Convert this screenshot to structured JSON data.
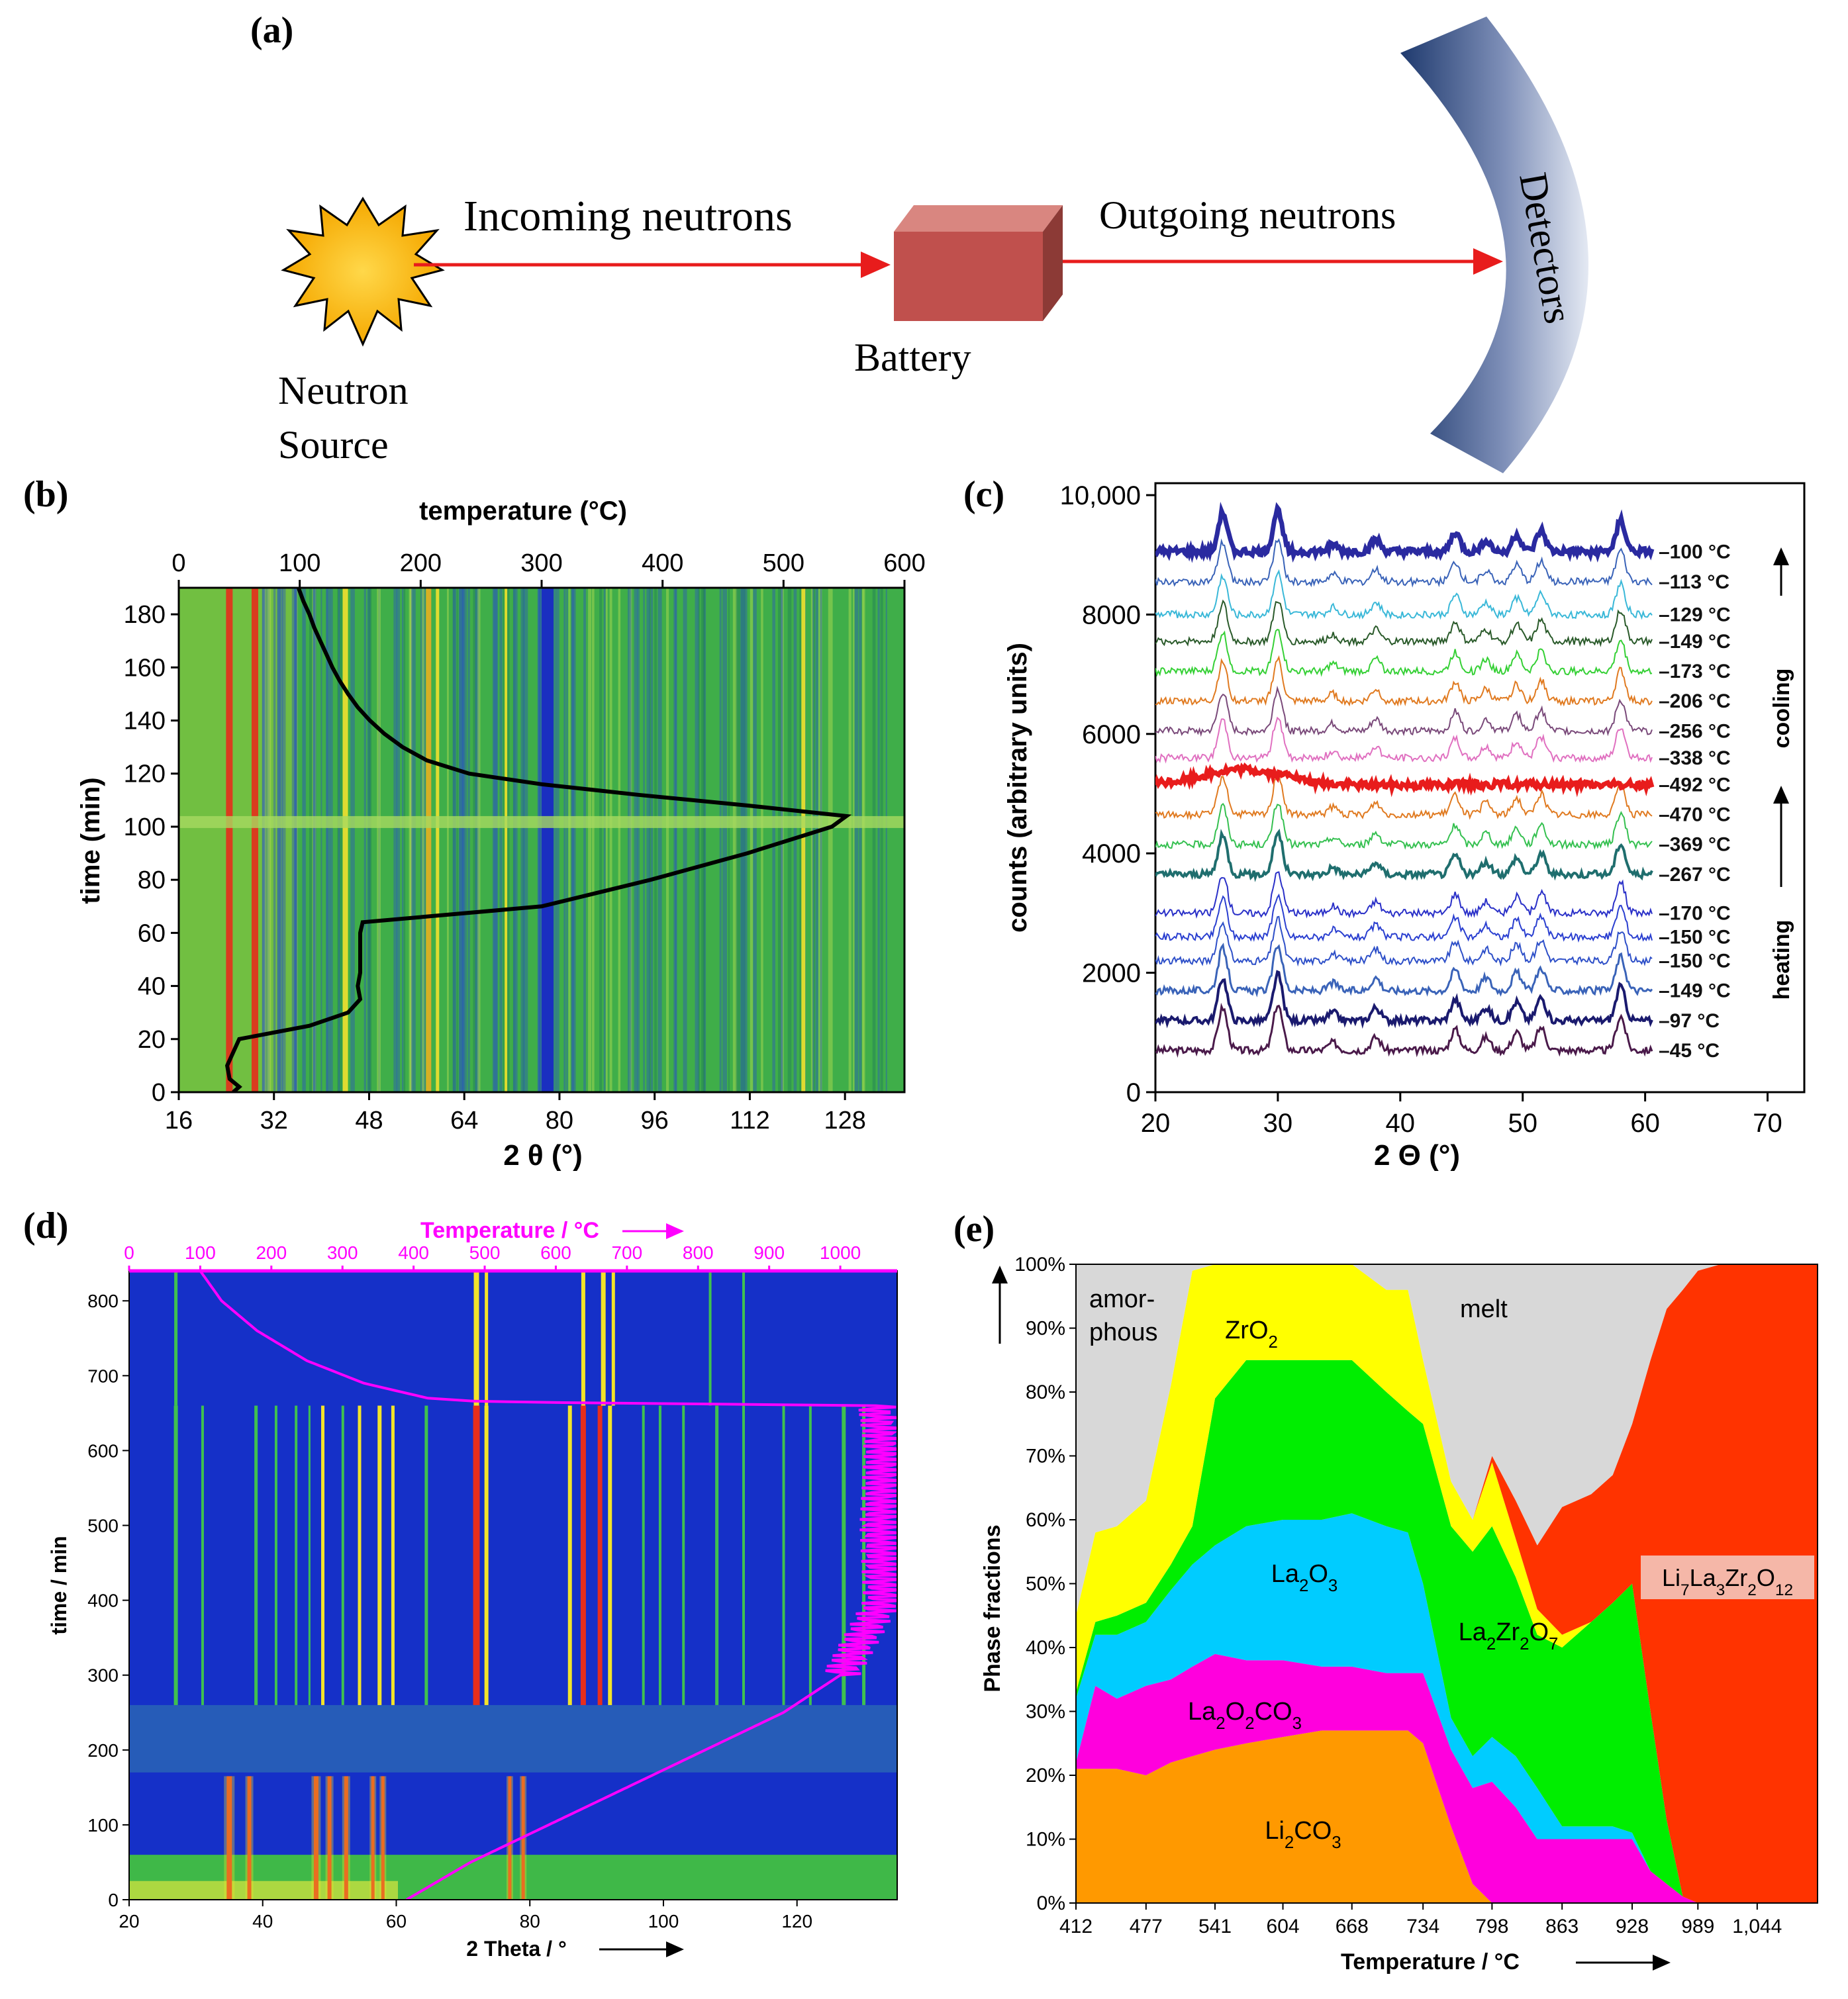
{
  "figure": {
    "panel_labels": {
      "a": "(a)",
      "b": "(b)",
      "c": "(c)",
      "d": "(d)",
      "e": "(e)"
    }
  },
  "panel_a": {
    "source_label_line1": "Neutron",
    "source_label_line2": "Source",
    "incoming_label": "Incoming neutrons",
    "battery_label": "Battery",
    "outgoing_label": "Outgoing neutrons",
    "detectors_label": "Detectors",
    "colors": {
      "star": "#FFC000",
      "arrow": "#E81C1C",
      "battery": "#C0504D",
      "detector_dark": "#1F3A6E",
      "detector_light": "#DCE3F0"
    }
  },
  "chart_data": [
    {
      "id": "b",
      "type": "heatmap",
      "title": "",
      "top_axis_label": "temperature (°C)",
      "top_ticks": [
        "0",
        "100",
        "200",
        "300",
        "400",
        "500",
        "600"
      ],
      "top_range": [
        0,
        600
      ],
      "xlabel": "2 θ (°)",
      "x_ticks": [
        "16",
        "32",
        "48",
        "64",
        "80",
        "96",
        "112",
        "128"
      ],
      "x_range": [
        16,
        138
      ],
      "ylabel": "time (min)",
      "y_ticks": [
        "0",
        "20",
        "40",
        "60",
        "80",
        "100",
        "120",
        "140",
        "160",
        "180"
      ],
      "y_range": [
        0,
        190
      ],
      "temperature_profile": {
        "time": [
          0,
          2,
          5,
          10,
          15,
          20,
          25,
          30,
          35,
          40,
          45,
          50,
          55,
          60,
          64,
          70,
          80,
          90,
          100,
          104,
          108,
          112,
          116,
          120,
          125,
          130,
          135,
          140,
          145,
          150,
          155,
          160,
          165,
          170,
          175,
          180,
          185,
          190
        ],
        "temperature": [
          45,
          50,
          42,
          40,
          45,
          50,
          108,
          140,
          150,
          148,
          150,
          150,
          150,
          150,
          152,
          300,
          390,
          470,
          540,
          552,
          470,
          380,
          300,
          240,
          205,
          185,
          170,
          158,
          148,
          140,
          133,
          127,
          122,
          117,
          112,
          108,
          103,
          99
        ]
      }
    },
    {
      "id": "c",
      "type": "line",
      "xlabel": "2 Θ (°)",
      "ylabel": "counts   (arbitrary units)",
      "x_ticks": [
        "20",
        "30",
        "40",
        "50",
        "60",
        "70"
      ],
      "x_range": [
        20,
        73
      ],
      "y_ticks": [
        "0",
        "2000",
        "4000",
        "6000",
        "8000",
        "10,000"
      ],
      "y_tick_values": [
        0,
        2000,
        4000,
        6000,
        8000,
        10000
      ],
      "y_range": [
        0,
        10200
      ],
      "cooling_label": "cooling",
      "heating_label": "heating",
      "series": [
        {
          "name": "45 °C",
          "offset": 700,
          "color": "#4A1A4A",
          "width": 3
        },
        {
          "name": "97 °C",
          "offset": 1200,
          "color": "#1A1A6E",
          "width": 4
        },
        {
          "name": "149 °C",
          "offset": 1700,
          "color": "#3A63B8",
          "width": 3
        },
        {
          "name": "150 °C",
          "offset": 2200,
          "color": "#2D4FC8",
          "width": 2
        },
        {
          "name": "150 °C",
          "offset": 2600,
          "color": "#2A3FD0",
          "width": 2
        },
        {
          "name": "170 °C",
          "offset": 3000,
          "color": "#2A30C8",
          "width": 2
        },
        {
          "name": "267 °C",
          "offset": 3650,
          "color": "#1F6E6E",
          "width": 4
        },
        {
          "name": "369 °C",
          "offset": 4150,
          "color": "#35C050",
          "width": 2
        },
        {
          "name": "470 °C",
          "offset": 4650,
          "color": "#E07A20",
          "width": 2
        },
        {
          "name": "492 °C",
          "offset": 5150,
          "color": "#E81C1C",
          "width": 7
        },
        {
          "name": "338 °C",
          "offset": 5600,
          "color": "#E070C0",
          "width": 2
        },
        {
          "name": "256 °C",
          "offset": 6050,
          "color": "#7A4A7A",
          "width": 2
        },
        {
          "name": "206 °C",
          "offset": 6550,
          "color": "#E07A20",
          "width": 2
        },
        {
          "name": "173 °C",
          "offset": 7050,
          "color": "#35D035",
          "width": 2
        },
        {
          "name": "149 °C",
          "offset": 7550,
          "color": "#2A5A2A",
          "width": 2
        },
        {
          "name": "129 °C",
          "offset": 8000,
          "color": "#3AB8D8",
          "width": 2
        },
        {
          "name": "113 °C",
          "offset": 8550,
          "color": "#3A63B8",
          "width": 2
        },
        {
          "name": "100 °C",
          "offset": 9050,
          "color": "#2A2AA0",
          "width": 7
        }
      ],
      "peak_positions": [
        25.5,
        30,
        34.5,
        38,
        44.5,
        47,
        49.5,
        51.5,
        58
      ]
    },
    {
      "id": "d",
      "type": "heatmap",
      "top_axis_label": "Temperature / °C",
      "top_ticks": [
        "0",
        "100",
        "200",
        "300",
        "400",
        "500",
        "600",
        "700",
        "800",
        "900",
        "1000"
      ],
      "top_range": [
        0,
        1080
      ],
      "xlabel": "2 Theta / °",
      "x_ticks": [
        "20",
        "40",
        "60",
        "80",
        "100",
        "120"
      ],
      "x_range": [
        20,
        135
      ],
      "ylabel": "time / min",
      "y_ticks": [
        "0",
        "100",
        "200",
        "300",
        "400",
        "500",
        "600",
        "700",
        "800"
      ],
      "y_range": [
        0,
        840
      ],
      "temperature_profile": {
        "time": [
          0,
          50,
          100,
          150,
          200,
          250,
          300,
          400,
          500,
          600,
          660,
          665,
          670,
          690,
          720,
          760,
          800,
          840
        ],
        "temperature": [
          390,
          480,
          590,
          700,
          810,
          920,
          1000,
          1060,
          1055,
          1060,
          1050,
          500,
          420,
          330,
          250,
          180,
          130,
          100
        ]
      }
    },
    {
      "id": "e",
      "type": "area",
      "stacked": true,
      "xlabel": "Temperature / °C",
      "ylabel": "Phase    fractions",
      "x_ticks": [
        "412",
        "477",
        "541",
        "604",
        "668",
        "734",
        "798",
        "863",
        "928",
        "989",
        "1,044"
      ],
      "x_tick_values": [
        412,
        477,
        541,
        604,
        668,
        734,
        798,
        863,
        928,
        989,
        1044
      ],
      "x_range": [
        412,
        1100
      ],
      "y_ticks": [
        "0%",
        "10%",
        "20%",
        "30%",
        "40%",
        "50%",
        "60%",
        "70%",
        "80%",
        "90%",
        "100%"
      ],
      "y_range": [
        0,
        100
      ],
      "x": [
        412,
        430,
        450,
        477,
        500,
        520,
        541,
        570,
        604,
        640,
        668,
        700,
        720,
        734,
        760,
        780,
        798,
        820,
        840,
        863,
        890,
        910,
        928,
        945,
        960,
        975,
        989,
        1010,
        1044,
        1100
      ],
      "series": [
        {
          "name": "Li2CO3",
          "color": "#FF9900",
          "values": [
            21,
            21,
            21,
            20,
            22,
            23,
            24,
            25,
            26,
            27,
            27,
            27,
            27,
            25,
            12,
            3,
            0,
            0,
            0,
            0,
            0,
            0,
            0,
            0,
            0,
            0,
            0,
            0,
            0,
            0
          ]
        },
        {
          "name": "La2O2CO3",
          "color": "#FF00DD",
          "values": [
            1,
            13,
            11,
            14,
            13,
            14,
            15,
            13,
            12,
            10,
            10,
            9,
            9,
            11,
            12,
            15,
            19,
            15,
            10,
            10,
            10,
            10,
            10,
            5,
            3,
            1,
            0,
            0,
            0,
            0
          ]
        },
        {
          "name": "La2O3",
          "color": "#00CCFF",
          "values": [
            10,
            8,
            10,
            10,
            14,
            16,
            17,
            21,
            22,
            23,
            24,
            23,
            22,
            14,
            5,
            5,
            7,
            8,
            8,
            2,
            2,
            2,
            1,
            0,
            0,
            0,
            0,
            0,
            0,
            0
          ]
        },
        {
          "name": "La2Zr2O7",
          "color": "#00EE00",
          "values": [
            1,
            2,
            3,
            3,
            4,
            6,
            23,
            26,
            25,
            25,
            24,
            21,
            19,
            25,
            30,
            32,
            33,
            28,
            24,
            28,
            32,
            35,
            39,
            25,
            10,
            0,
            0,
            0,
            0,
            0
          ]
        },
        {
          "name": "ZrO2",
          "color": "#FFFF00",
          "values": [
            12,
            14,
            14,
            16,
            28,
            40,
            21,
            15,
            15,
            15,
            15,
            16,
            19,
            10,
            7,
            5,
            10,
            6,
            4,
            2,
            0,
            0,
            0,
            0,
            0,
            0,
            0,
            0,
            0,
            0
          ]
        },
        {
          "name": "Li7La3Zr2O12",
          "color": "#FF3300",
          "values": [
            0,
            0,
            0,
            0,
            0,
            0,
            0,
            0,
            0,
            0,
            0,
            0,
            0,
            0,
            0,
            0,
            1,
            6,
            10,
            20,
            20,
            20,
            25,
            55,
            80,
            95,
            99,
            100,
            100,
            100
          ]
        },
        {
          "name": "amorphous / melt",
          "color": "#D8D8D8",
          "values": [
            55,
            42,
            41,
            37,
            19,
            1,
            0,
            0,
            0,
            0,
            0,
            4,
            4,
            15,
            34,
            40,
            30,
            37,
            44,
            38,
            36,
            33,
            25,
            15,
            7,
            4,
            1,
            0,
            0,
            0
          ]
        }
      ],
      "labels": {
        "amorphous_line1": "amor-",
        "amorphous_line2": "phous",
        "melt": "melt",
        "ZrO2": "ZrO",
        "La2O3": "La",
        "La2Zr2O7": "La",
        "La2O2CO3": "La",
        "Li2CO3": "Li",
        "LLZO": "Li"
      }
    }
  ],
  "formula_parts": {
    "ZrO2": [
      "ZrO",
      "2",
      ""
    ],
    "La2O3": [
      "La",
      "2",
      "O",
      "3"
    ],
    "La2Zr2O7": [
      "La",
      "2",
      "Zr",
      "2",
      "O",
      "7"
    ],
    "La2O2CO3": [
      "La",
      "2",
      "O",
      "2",
      "CO",
      "3"
    ],
    "Li2CO3": [
      "Li",
      "2",
      "CO",
      "3"
    ],
    "LLZO": [
      "Li",
      "7",
      "La",
      "3",
      "Zr",
      "2",
      "O",
      "12"
    ]
  }
}
